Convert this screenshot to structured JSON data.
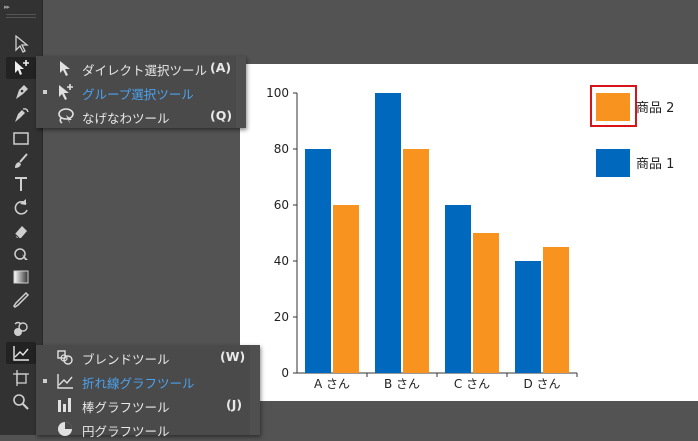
{
  "toolbar": {
    "tools": [
      {
        "icon": "selection-arrow-icon"
      },
      {
        "icon": "direct-selection-plus-icon",
        "active": true
      },
      {
        "icon": "pen-icon"
      },
      {
        "icon": "curvature-icon"
      },
      {
        "icon": "rectangle-icon"
      },
      {
        "icon": "paintbrush-icon"
      },
      {
        "icon": "type-icon"
      },
      {
        "icon": "rotate-icon"
      },
      {
        "icon": "eraser-icon"
      },
      {
        "icon": "warp-icon"
      },
      {
        "icon": "gradient-icon"
      },
      {
        "icon": "eyedropper-icon"
      },
      {
        "icon": "blend-icon"
      },
      {
        "icon": "line-graph-icon",
        "active": true
      },
      {
        "icon": "artboard-icon"
      },
      {
        "icon": "zoom-icon"
      }
    ]
  },
  "select_flyout": {
    "items": [
      {
        "label": "ダイレクト選択ツール",
        "shortcut": "(A)",
        "selected": false,
        "icon": "direct-selection-icon"
      },
      {
        "label": "グループ選択ツール",
        "shortcut": "",
        "selected": true,
        "icon": "group-selection-icon"
      },
      {
        "label": "なげなわツール",
        "shortcut": "(Q)",
        "selected": false,
        "icon": "lasso-icon"
      }
    ]
  },
  "graph_flyout": {
    "items": [
      {
        "label": "ブレンドツール",
        "shortcut": "(W)",
        "selected": false,
        "icon": "blend-icon"
      },
      {
        "label": "折れ線グラフツール",
        "shortcut": "",
        "selected": true,
        "icon": "line-graph-icon"
      },
      {
        "label": "棒グラフツール",
        "shortcut": "(J)",
        "selected": false,
        "icon": "bar-graph-icon"
      },
      {
        "label": "円グラフツール",
        "shortcut": "",
        "selected": false,
        "icon": "pie-graph-icon"
      }
    ]
  },
  "colors": {
    "series1": "#0068bd",
    "series2": "#f7931e",
    "legend_highlight": "#d8141b",
    "selected_text": "#4aa3f0"
  },
  "chart_data": {
    "type": "bar",
    "categories": [
      "A さん",
      "B さん",
      "C さん",
      "D さん"
    ],
    "series": [
      {
        "name": "商品 1",
        "values": [
          80,
          100,
          60,
          40
        ]
      },
      {
        "name": "商品 2",
        "values": [
          60,
          80,
          50,
          45
        ]
      }
    ],
    "ylim": [
      0,
      100
    ],
    "yticks": [
      0,
      20,
      40,
      60,
      80,
      100
    ],
    "legend": [
      "商品 2",
      "商品 1"
    ],
    "legend_position": "top-right",
    "legend_highlighted": "商品 2",
    "grid": false,
    "title": "",
    "xlabel": "",
    "ylabel": ""
  }
}
